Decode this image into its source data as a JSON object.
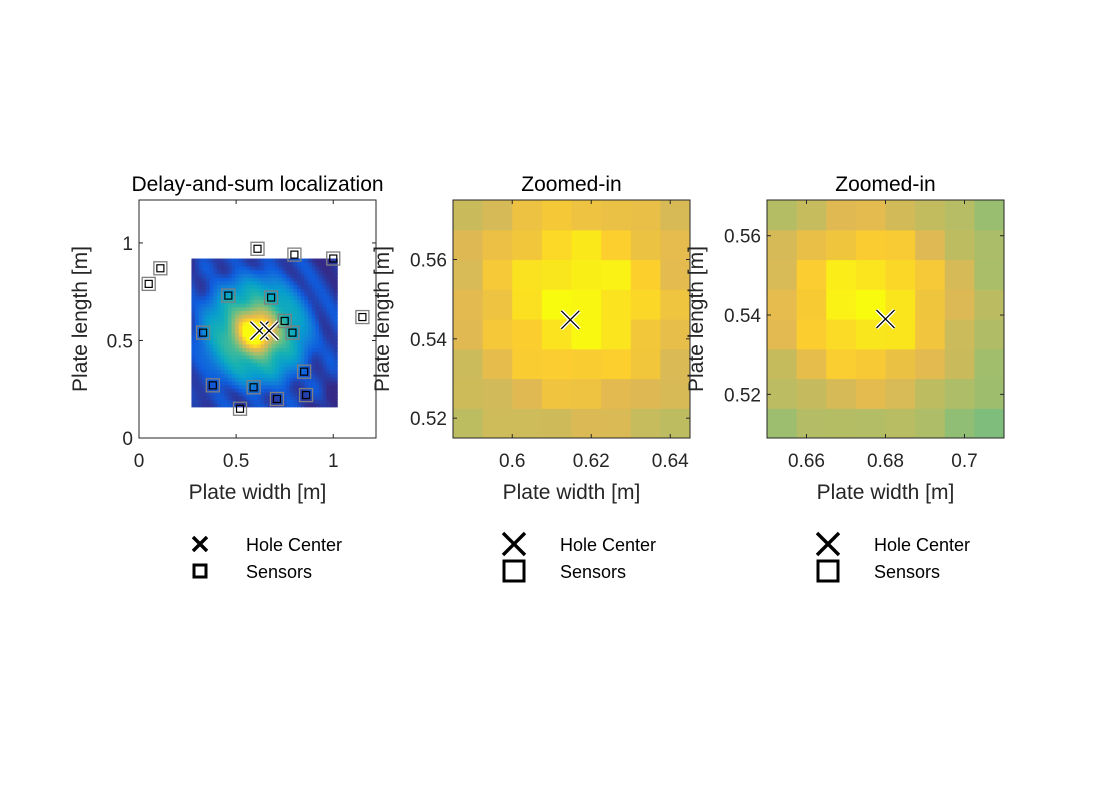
{
  "chart_data": [
    {
      "type": "heatmap",
      "title": "Delay-and-sum localization",
      "xlabel": "Plate width [m]",
      "ylabel": "Plate length [m]",
      "xlim": [
        0,
        1.22
      ],
      "ylim": [
        0,
        1.22
      ],
      "xticks": [
        0,
        0.5,
        1
      ],
      "yticks": [
        0,
        0.5,
        1
      ],
      "xtick_labels": [
        "0",
        "0.5",
        "1"
      ],
      "ytick_labels": [
        "0",
        "0.5",
        "1"
      ],
      "heatmap": {
        "x_range": [
          0.27,
          1.02
        ],
        "y_range": [
          0.16,
          0.92
        ],
        "peak": [
          0.6,
          0.55
        ],
        "colormap": "parula"
      },
      "hole_centers": [
        [
          0.62,
          0.55
        ],
        [
          0.67,
          0.55
        ]
      ],
      "sensors": [
        [
          0.05,
          0.79
        ],
        [
          0.11,
          0.87
        ],
        [
          0.61,
          0.97
        ],
        [
          0.8,
          0.94
        ],
        [
          1.0,
          0.92
        ],
        [
          1.15,
          0.62
        ],
        [
          0.46,
          0.73
        ],
        [
          0.68,
          0.72
        ],
        [
          0.75,
          0.6
        ],
        [
          0.79,
          0.54
        ],
        [
          0.33,
          0.54
        ],
        [
          0.85,
          0.34
        ],
        [
          0.38,
          0.27
        ],
        [
          0.59,
          0.26
        ],
        [
          0.86,
          0.22
        ],
        [
          0.71,
          0.2
        ],
        [
          0.52,
          0.15
        ]
      ],
      "legend": {
        "placement": "below",
        "entries": [
          "Hole Center",
          "Sensors"
        ]
      }
    },
    {
      "type": "heatmap",
      "title": "Zoomed-in",
      "xlabel": "Plate width [m]",
      "ylabel": "Plate length [m]",
      "xlim": [
        0.585,
        0.645
      ],
      "ylim": [
        0.515,
        0.575
      ],
      "xticks": [
        0.6,
        0.62,
        0.64
      ],
      "yticks": [
        0.52,
        0.54,
        0.56
      ],
      "xtick_labels": [
        "0.6",
        "0.62",
        "0.64"
      ],
      "ytick_labels": [
        "0.52",
        "0.54",
        "0.56"
      ],
      "heatmap": {
        "x_range": [
          0.585,
          0.645
        ],
        "y_range": [
          0.515,
          0.575
        ],
        "peak": [
          0.617,
          0.55
        ],
        "colormap": "parula"
      },
      "hole_centers": [
        [
          0.6147,
          0.5448
        ]
      ],
      "legend": {
        "placement": "below",
        "entries": [
          "Hole Center",
          "Sensors"
        ]
      }
    },
    {
      "type": "heatmap",
      "title": "Zoomed-in",
      "xlabel": "Plate width [m]",
      "ylabel": "Plate length [m]",
      "xlim": [
        0.65,
        0.71
      ],
      "ylim": [
        0.509,
        0.569
      ],
      "xticks": [
        0.66,
        0.68,
        0.7
      ],
      "yticks": [
        0.52,
        0.54,
        0.56
      ],
      "xtick_labels": [
        "0.66",
        "0.68",
        "0.7"
      ],
      "ytick_labels": [
        "0.52",
        "0.54",
        "0.56"
      ],
      "heatmap": {
        "x_range": [
          0.65,
          0.71
        ],
        "y_range": [
          0.509,
          0.569
        ],
        "peak": [
          0.675,
          0.543
        ],
        "colormap": "parula"
      },
      "hole_centers": [
        [
          0.68,
          0.539
        ]
      ],
      "legend": {
        "placement": "below",
        "entries": [
          "Hole Center",
          "Sensors"
        ]
      }
    }
  ]
}
